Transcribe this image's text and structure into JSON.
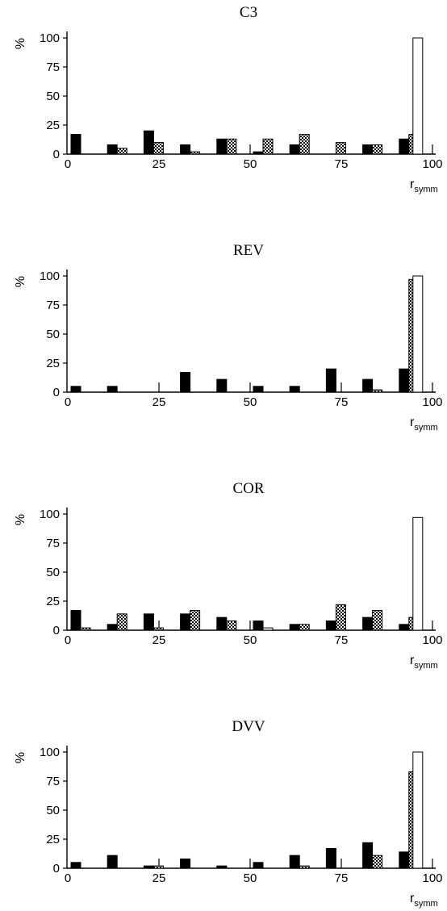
{
  "chart_data": [
    {
      "type": "bar",
      "title": "C3",
      "ylabel": "%",
      "xlabel_main": "r",
      "xlabel_sub": "symm",
      "xlim": [
        0,
        100
      ],
      "ylim": [
        0,
        100
      ],
      "xticks": [
        0,
        25,
        50,
        75,
        100
      ],
      "yticks": [
        0,
        25,
        50,
        75,
        100
      ],
      "categories": [
        0,
        10,
        20,
        30,
        40,
        50,
        60,
        70,
        80,
        90
      ],
      "series": [
        {
          "style": "solid",
          "values": [
            17,
            8,
            20,
            8,
            13,
            2,
            8,
            0,
            8,
            13
          ]
        },
        {
          "style": "checkered",
          "values": [
            0,
            5,
            10,
            2,
            13,
            13,
            17,
            10,
            8,
            17
          ]
        },
        {
          "style": "open",
          "values": [
            0,
            0,
            0,
            0,
            0,
            0,
            0,
            0,
            0,
            100
          ]
        }
      ]
    },
    {
      "type": "bar",
      "title": "REV",
      "ylabel": "%",
      "xlabel_main": "r",
      "xlabel_sub": "symm",
      "xlim": [
        0,
        100
      ],
      "ylim": [
        0,
        100
      ],
      "xticks": [
        0,
        25,
        50,
        75,
        100
      ],
      "yticks": [
        0,
        25,
        50,
        75,
        100
      ],
      "categories": [
        0,
        10,
        20,
        30,
        40,
        50,
        60,
        70,
        80,
        90
      ],
      "series": [
        {
          "style": "solid",
          "values": [
            5,
            5,
            0,
            17,
            11,
            5,
            5,
            20,
            11,
            20
          ]
        },
        {
          "style": "checkered",
          "values": [
            0,
            0,
            0,
            0,
            0,
            0,
            0,
            0,
            2,
            97
          ]
        },
        {
          "style": "open",
          "values": [
            0,
            0,
            0,
            0,
            0,
            0,
            0,
            0,
            0,
            100
          ]
        }
      ]
    },
    {
      "type": "bar",
      "title": "COR",
      "ylabel": "%",
      "xlabel_main": "r",
      "xlabel_sub": "symm",
      "xlim": [
        0,
        100
      ],
      "ylim": [
        0,
        100
      ],
      "xticks": [
        0,
        25,
        50,
        75,
        100
      ],
      "yticks": [
        0,
        25,
        50,
        75,
        100
      ],
      "categories": [
        0,
        10,
        20,
        30,
        40,
        50,
        60,
        70,
        80,
        90
      ],
      "series": [
        {
          "style": "solid",
          "values": [
            17,
            5,
            14,
            14,
            11,
            8,
            5,
            8,
            11,
            5
          ]
        },
        {
          "style": "checkered",
          "values": [
            2,
            14,
            2,
            17,
            8,
            0,
            5,
            22,
            17,
            11
          ]
        },
        {
          "style": "open",
          "values": [
            0,
            0,
            0,
            0,
            0,
            2,
            0,
            0,
            0,
            97
          ]
        }
      ]
    },
    {
      "type": "bar",
      "title": "DVV",
      "ylabel": "%",
      "xlabel_main": "r",
      "xlabel_sub": "symm",
      "xlim": [
        0,
        100
      ],
      "ylim": [
        0,
        100
      ],
      "xticks": [
        0,
        25,
        50,
        75,
        100
      ],
      "yticks": [
        0,
        25,
        50,
        75,
        100
      ],
      "categories": [
        0,
        10,
        20,
        30,
        40,
        50,
        60,
        70,
        80,
        90
      ],
      "series": [
        {
          "style": "solid",
          "values": [
            5,
            11,
            2,
            8,
            2,
            5,
            11,
            17,
            22,
            14
          ]
        },
        {
          "style": "checkered",
          "values": [
            0,
            0,
            2,
            0,
            0,
            0,
            2,
            0,
            11,
            83
          ]
        },
        {
          "style": "open",
          "values": [
            0,
            0,
            0,
            0,
            0,
            0,
            0,
            0,
            0,
            100
          ]
        }
      ]
    }
  ]
}
